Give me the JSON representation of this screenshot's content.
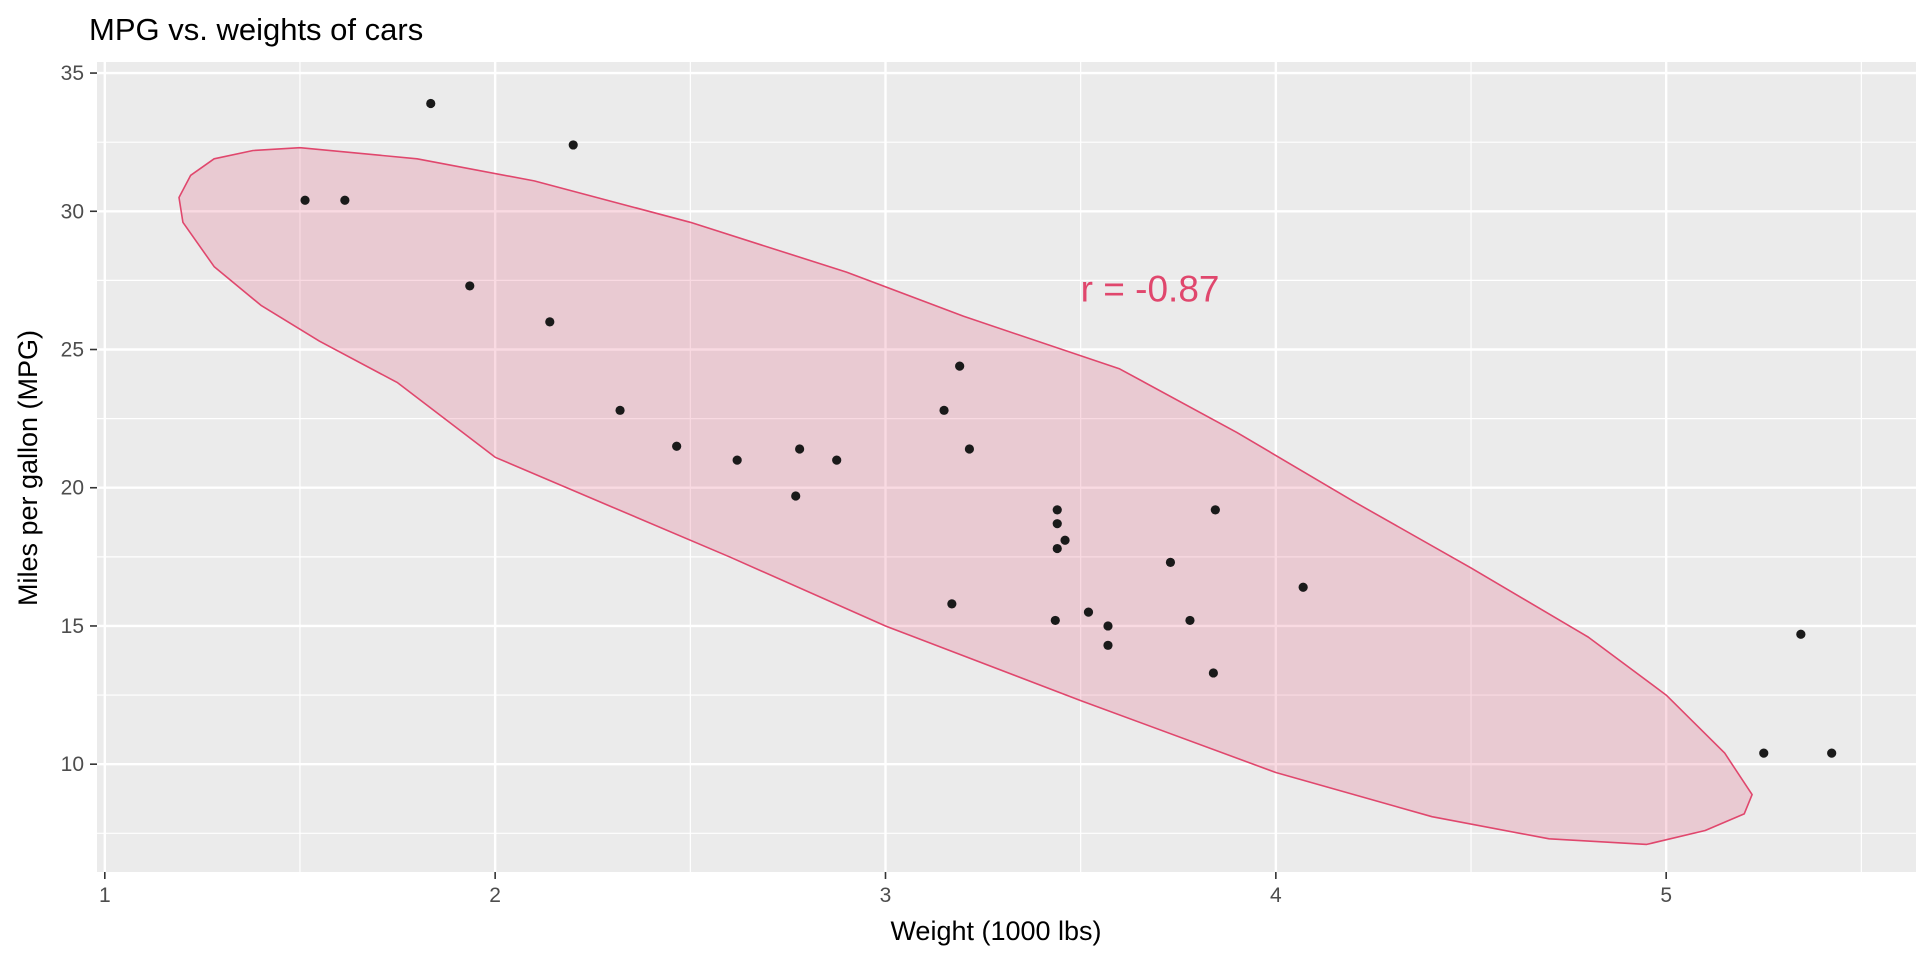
{
  "chart_data": {
    "type": "scatter",
    "title": "MPG vs. weights of cars",
    "xlabel": "Weight (1000 lbs)",
    "ylabel": "Miles per gallon (MPG)",
    "xlim": [
      0.98,
      5.64
    ],
    "ylim": [
      6.1,
      35.4
    ],
    "x_ticks": [
      1,
      2,
      3,
      4,
      5
    ],
    "y_ticks": [
      10,
      15,
      20,
      25,
      30,
      35
    ],
    "grid": true,
    "panel_background": "#EBEBEB",
    "point_color": "#1a1a1a",
    "ellipse_color": "#E0476D",
    "ellipse_fill_opacity": 0.2,
    "annotation": {
      "text": "r = -0.87",
      "x": 3.5,
      "y": 27.2
    },
    "points": [
      {
        "x": 2.62,
        "y": 21.0
      },
      {
        "x": 2.875,
        "y": 21.0
      },
      {
        "x": 2.32,
        "y": 22.8
      },
      {
        "x": 3.215,
        "y": 21.4
      },
      {
        "x": 3.44,
        "y": 18.7
      },
      {
        "x": 3.46,
        "y": 18.1
      },
      {
        "x": 3.57,
        "y": 14.3
      },
      {
        "x": 3.19,
        "y": 24.4
      },
      {
        "x": 3.15,
        "y": 22.8
      },
      {
        "x": 3.44,
        "y": 19.2
      },
      {
        "x": 3.44,
        "y": 17.8
      },
      {
        "x": 4.07,
        "y": 16.4
      },
      {
        "x": 3.73,
        "y": 17.3
      },
      {
        "x": 3.78,
        "y": 15.2
      },
      {
        "x": 5.25,
        "y": 10.4
      },
      {
        "x": 5.424,
        "y": 10.4
      },
      {
        "x": 5.345,
        "y": 14.7
      },
      {
        "x": 2.2,
        "y": 32.4
      },
      {
        "x": 1.615,
        "y": 30.4
      },
      {
        "x": 1.835,
        "y": 33.9
      },
      {
        "x": 2.465,
        "y": 21.5
      },
      {
        "x": 3.52,
        "y": 15.5
      },
      {
        "x": 3.435,
        "y": 15.2
      },
      {
        "x": 3.84,
        "y": 13.3
      },
      {
        "x": 3.845,
        "y": 19.2
      },
      {
        "x": 1.935,
        "y": 27.3
      },
      {
        "x": 2.14,
        "y": 26.0
      },
      {
        "x": 1.513,
        "y": 30.4
      },
      {
        "x": 3.17,
        "y": 15.8
      },
      {
        "x": 2.77,
        "y": 19.7
      },
      {
        "x": 3.57,
        "y": 15.0
      },
      {
        "x": 2.78,
        "y": 21.4
      }
    ],
    "ellipse": [
      [
        1.19,
        30.5
      ],
      [
        1.2,
        29.6
      ],
      [
        1.28,
        28.0
      ],
      [
        1.4,
        26.6
      ],
      [
        1.55,
        25.3
      ],
      [
        1.75,
        23.8
      ],
      [
        2.0,
        21.1
      ],
      [
        2.3,
        19.3
      ],
      [
        2.6,
        17.5
      ],
      [
        3.0,
        15.0
      ],
      [
        3.5,
        12.3
      ],
      [
        4.0,
        9.7
      ],
      [
        4.4,
        8.1
      ],
      [
        4.7,
        7.3
      ],
      [
        4.95,
        7.1
      ],
      [
        5.1,
        7.6
      ],
      [
        5.2,
        8.2
      ],
      [
        5.22,
        8.9
      ],
      [
        5.15,
        10.4
      ],
      [
        5.0,
        12.5
      ],
      [
        4.8,
        14.6
      ],
      [
        4.5,
        17.1
      ],
      [
        4.2,
        19.5
      ],
      [
        3.9,
        22.0
      ],
      [
        3.6,
        24.3
      ],
      [
        3.2,
        26.2
      ],
      [
        2.9,
        27.8
      ],
      [
        2.5,
        29.6
      ],
      [
        2.1,
        31.1
      ],
      [
        1.8,
        31.9
      ],
      [
        1.5,
        32.3
      ],
      [
        1.38,
        32.2
      ],
      [
        1.28,
        31.9
      ],
      [
        1.22,
        31.3
      ]
    ]
  }
}
